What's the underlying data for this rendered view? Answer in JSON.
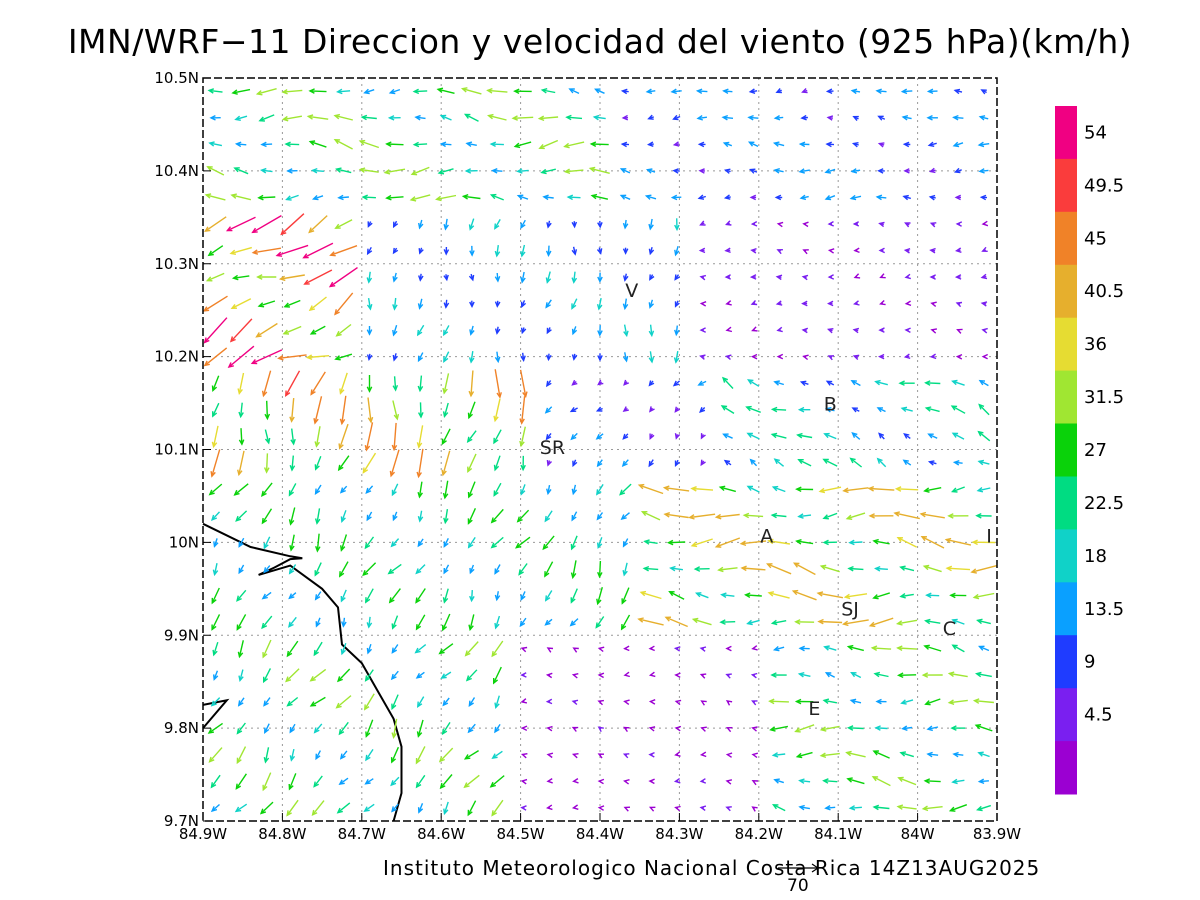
{
  "title": "IMN/WRF−11 Direccion y velocidad del viento (925 hPa)(km/h)",
  "footer": "Instituto Meteorologico Nacional Costa Rica 14Z13AUG2025",
  "reference_vector": {
    "value": "70"
  },
  "axes": {
    "x_ticks": [
      "84.9W",
      "84.8W",
      "84.7W",
      "84.6W",
      "84.5W",
      "84.4W",
      "84.3W",
      "84.2W",
      "84.1W",
      "84W",
      "83.9W"
    ],
    "y_ticks": [
      "10.5N",
      "10.4N",
      "10.3N",
      "10.2N",
      "10.1N",
      "10N",
      "9.9N",
      "9.8N",
      "9.7N"
    ],
    "lon_range": [
      -84.9,
      -83.9
    ],
    "lat_range": [
      9.7,
      10.5
    ],
    "grid": "dotted"
  },
  "cities": [
    {
      "label": "V",
      "lon": -84.36,
      "lat": 10.264
    },
    {
      "label": "B",
      "lon": -84.11,
      "lat": 10.142
    },
    {
      "label": "SR",
      "lon": -84.46,
      "lat": 10.095
    },
    {
      "label": "A",
      "lon": -84.19,
      "lat": 10.0
    },
    {
      "label": "I",
      "lon": -83.91,
      "lat": 10.0
    },
    {
      "label": "SJ",
      "lon": -84.085,
      "lat": 9.921
    },
    {
      "label": "C",
      "lon": -83.96,
      "lat": 9.9
    },
    {
      "label": "E",
      "lon": -84.13,
      "lat": 9.814
    }
  ],
  "colorbar": {
    "labels": [
      "54",
      "49.5",
      "45",
      "40.5",
      "36",
      "31.5",
      "27",
      "22.5",
      "18",
      "13.5",
      "9",
      "4.5"
    ],
    "colors": [
      "#9b00d2",
      "#7a1ff0",
      "#1f3cff",
      "#0aa0ff",
      "#10d2c8",
      "#00dc82",
      "#0ad20a",
      "#a0e632",
      "#e6dc32",
      "#e6af2d",
      "#f08228",
      "#fa3c3c",
      "#f00082"
    ]
  },
  "coastline": [
    [
      [
        -84.9,
        10.02
      ],
      [
        -84.84,
        9.995
      ],
      [
        -84.79,
        9.985
      ],
      [
        -84.775,
        9.983
      ],
      [
        -84.79,
        9.982
      ],
      [
        -84.81,
        9.973
      ],
      [
        -84.83,
        9.965
      ],
      [
        -84.79,
        9.975
      ],
      [
        -84.75,
        9.95
      ],
      [
        -84.73,
        9.93
      ],
      [
        -84.725,
        9.89
      ],
      [
        -84.7,
        9.87
      ],
      [
        -84.68,
        9.84
      ],
      [
        -84.66,
        9.81
      ],
      [
        -84.65,
        9.78
      ],
      [
        -84.65,
        9.73
      ],
      [
        -84.66,
        9.7
      ]
    ],
    [
      [
        -84.9,
        9.825
      ],
      [
        -84.87,
        9.83
      ],
      [
        -84.9,
        9.8
      ]
    ]
  ],
  "wind_field": {
    "description_units": "km/h",
    "grid_lon_start": -84.9,
    "grid_lon_end": -83.9,
    "grid_lat_start": 9.7,
    "grid_lat_end": 10.5,
    "nx": 31,
    "ny": 28
  }
}
